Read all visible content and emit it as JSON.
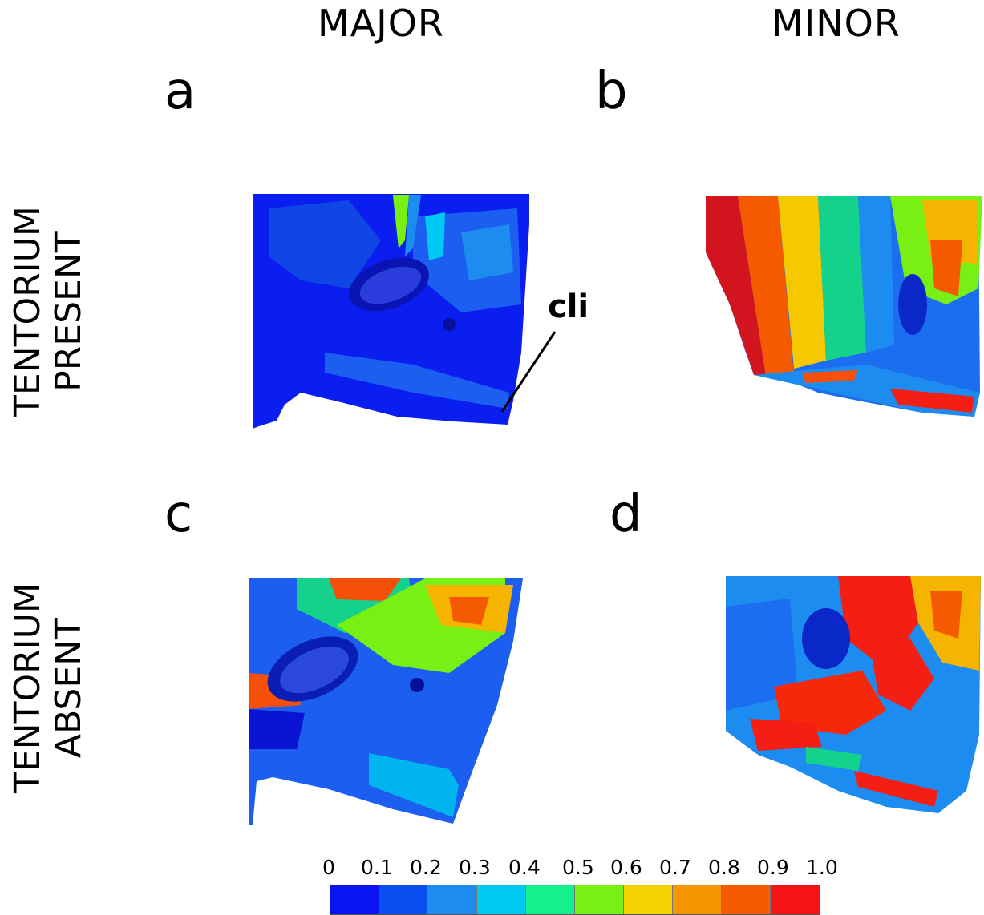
{
  "columns": {
    "left": "MAJOR",
    "right": "MINOR"
  },
  "rows": {
    "top": {
      "line1": "TENTORIUM",
      "line2": "PRESENT"
    },
    "bottom": {
      "line1": "TENTORIUM",
      "line2": "ABSENT"
    }
  },
  "panels": {
    "a": "a",
    "b": "b",
    "c": "c",
    "d": "d"
  },
  "annotation": "cli",
  "colorbar": {
    "ticks": [
      "0",
      "0.1",
      "0.2",
      "0.3",
      "0.4",
      "0.5",
      "0.6",
      "0.7",
      "0.8",
      "0.9",
      "1.0"
    ],
    "colors": [
      "#0a14f0",
      "#0a4ef0",
      "#1c8cf0",
      "#00c8f5",
      "#14f08c",
      "#78f014",
      "#f5d200",
      "#f59600",
      "#f55a00",
      "#f51414"
    ]
  }
}
